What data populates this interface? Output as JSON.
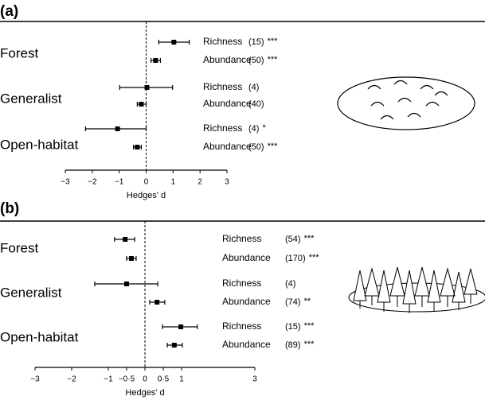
{
  "chart_data": [
    {
      "type": "forest",
      "panel": "(a)",
      "xlabel": "Hedges' d",
      "xlim": [
        -3,
        3
      ],
      "xticks": [
        {
          "value": -3,
          "label": "−3"
        },
        {
          "value": -2,
          "label": "−2"
        },
        {
          "value": -1,
          "label": "−1"
        },
        0,
        1,
        2,
        3
      ],
      "groups": [
        {
          "name": "Forest",
          "rows": [
            {
              "measure": "Richness",
              "n": "(15)",
              "sig": "***",
              "value": 1.03,
              "ci": [
                0.47,
                1.6
              ]
            },
            {
              "measure": "Abundance",
              "n": "(50)",
              "sig": "***",
              "value": 0.35,
              "ci": [
                0.18,
                0.53
              ]
            }
          ]
        },
        {
          "name": "Generalist",
          "rows": [
            {
              "measure": "Richness",
              "n": "(4)",
              "value": 0.03,
              "ci": [
                -0.98,
                0.98
              ]
            },
            {
              "measure": "Abundance",
              "n": "(40)",
              "value": -0.18,
              "ci": [
                -0.33,
                0.0
              ]
            }
          ]
        },
        {
          "name": "Open-habitat",
          "rows": [
            {
              "measure": "Richness",
              "n": "(4)",
              "sig": "*",
              "value": -1.06,
              "ci": [
                -2.25,
                0.0
              ]
            },
            {
              "measure": "Abundance",
              "n": "(50)",
              "sig": "***",
              "value": -0.33,
              "ci": [
                -0.47,
                -0.18
              ]
            }
          ]
        }
      ]
    },
    {
      "type": "forest",
      "panel": "(b)",
      "xlabel": "Hedges' d",
      "xlim": [
        -3,
        3
      ],
      "xticks": [
        {
          "value": -3,
          "label": "−3"
        },
        {
          "value": -2,
          "label": "−2"
        },
        {
          "value": -1,
          "label": "−1"
        },
        {
          "value": -0.5,
          "label": "−0·5"
        },
        0,
        {
          "value": 0.5,
          "label": "0·5"
        },
        1,
        3
      ],
      "groups": [
        {
          "name": "Forest",
          "rows": [
            {
              "measure": "Richness",
              "n": "(54)",
              "sig": "***",
              "value": -0.54,
              "ci": [
                -0.83,
                -0.28
              ]
            },
            {
              "measure": "Abundance",
              "n": "(170)",
              "sig": "***",
              "value": -0.37,
              "ci": [
                -0.5,
                -0.24
              ]
            }
          ]
        },
        {
          "name": "Generalist",
          "rows": [
            {
              "measure": "Richness",
              "n": "(4)",
              "value": -0.5,
              "ci": [
                -1.37,
                0.35
              ]
            },
            {
              "measure": "Abundance",
              "n": "(74)",
              "sig": "**",
              "value": 0.33,
              "ci": [
                0.13,
                0.54
              ]
            }
          ]
        },
        {
          "name": "Open-habitat",
          "rows": [
            {
              "measure": "Richness",
              "n": "(15)",
              "sig": "***",
              "value": 0.98,
              "ci": [
                0.48,
                1.43
              ]
            },
            {
              "measure": "Abundance",
              "n": "(89)",
              "sig": "***",
              "value": 0.8,
              "ci": [
                0.61,
                1.02
              ]
            }
          ]
        }
      ]
    }
  ]
}
